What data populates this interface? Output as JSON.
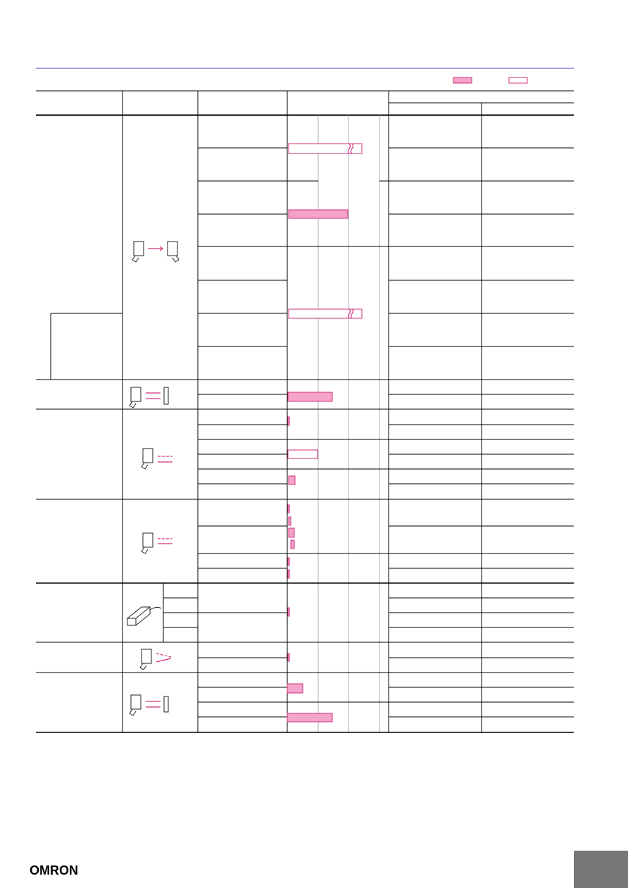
{
  "footer": {
    "logo": "OMRON"
  }
}
